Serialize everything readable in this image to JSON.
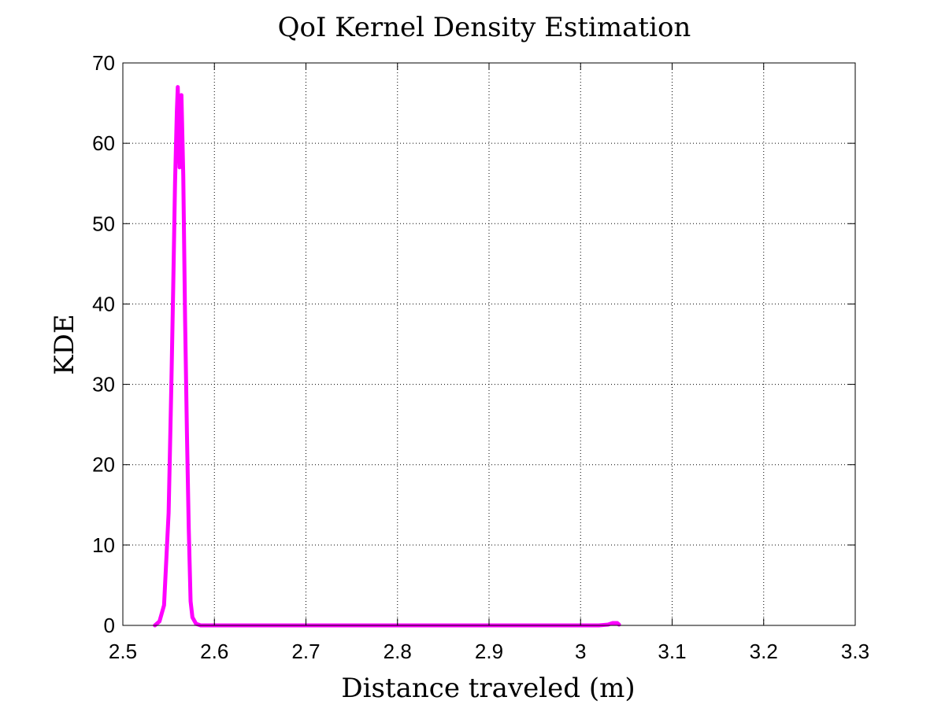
{
  "chart_data": {
    "type": "line",
    "title": "QoI Kernel Density Estimation",
    "xlabel": "Distance traveled (m)",
    "ylabel": "KDE",
    "xlim": [
      2.5,
      3.3
    ],
    "ylim": [
      0,
      70
    ],
    "xticks": [
      "2.5",
      "2.6",
      "2.7",
      "2.8",
      "2.9",
      "3",
      "3.1",
      "3.2",
      "3.3"
    ],
    "yticks": [
      "0",
      "10",
      "20",
      "30",
      "40",
      "50",
      "60",
      "70"
    ],
    "grid": true,
    "series": [
      {
        "color": "#ff00ff",
        "x": [
          2.535,
          2.54,
          2.545,
          2.55,
          2.553,
          2.555,
          2.557,
          2.559,
          2.56,
          2.561,
          2.562,
          2.563,
          2.564,
          2.566,
          2.568,
          2.57,
          2.572,
          2.574,
          2.576,
          2.58,
          2.585,
          2.59,
          2.7,
          2.8,
          2.9,
          3.0,
          3.02,
          3.03,
          3.035,
          3.04,
          3.042
        ],
        "y": [
          0,
          0.5,
          2.5,
          14,
          30,
          42,
          55,
          64,
          67,
          62,
          57,
          63,
          66,
          56,
          38,
          24,
          12,
          3,
          1,
          0.2,
          0,
          0,
          0,
          0,
          0,
          0,
          0,
          0.1,
          0.3,
          0.3,
          0.1
        ]
      }
    ]
  }
}
